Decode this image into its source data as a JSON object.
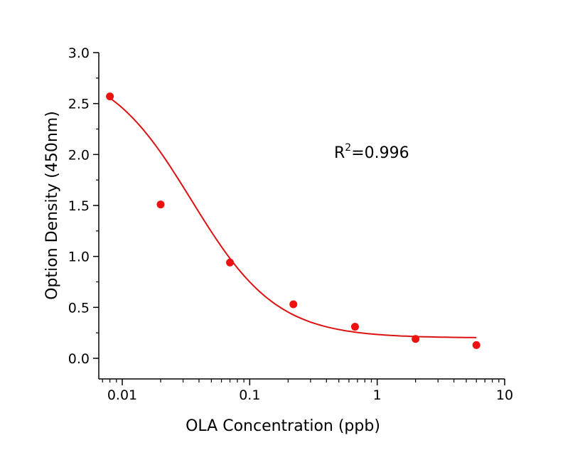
{
  "chart_data": {
    "type": "scatter",
    "title": "",
    "xlabel": "OLA  Concentration  (ppb)",
    "ylabel": "Option Density  (450nm)",
    "xscale": "log",
    "xlim": [
      0.0065,
      10
    ],
    "ylim": [
      -0.2,
      3.0
    ],
    "x_ticks": [
      0.01,
      0.1,
      1,
      10
    ],
    "x_tick_labels": [
      "0.01",
      "0.1",
      "1",
      "10"
    ],
    "y_ticks": [
      0.0,
      0.5,
      1.0,
      1.5,
      2.0,
      2.5,
      3.0
    ],
    "y_tick_labels": [
      "0.0",
      "0.5",
      "1.0",
      "1.5",
      "2.0",
      "2.5",
      "3.0"
    ],
    "grid": false,
    "series": [
      {
        "name": "data",
        "x": [
          0.008,
          0.02,
          0.07,
          0.22,
          0.67,
          2,
          6
        ],
        "y": [
          2.57,
          1.51,
          0.94,
          0.53,
          0.31,
          0.19,
          0.13
        ],
        "color": "#ee1111"
      }
    ],
    "fit": {
      "model": "4PL",
      "A": 2.9,
      "B": 1.3,
      "C": 0.035,
      "D": 0.2,
      "x_range": [
        0.008,
        6
      ],
      "color": "#dd1111"
    },
    "annotation": {
      "base": "R",
      "sup": "2",
      "rest": "=0.996"
    }
  }
}
